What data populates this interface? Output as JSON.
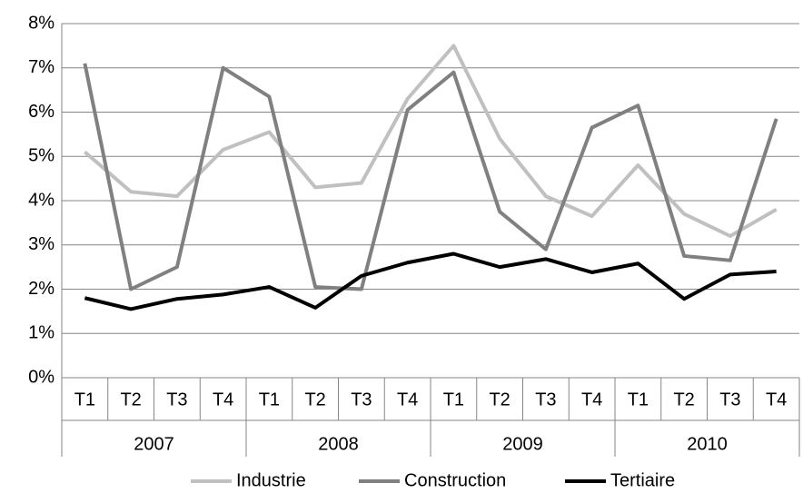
{
  "chart_data": {
    "type": "line",
    "categories": [
      "T1",
      "T2",
      "T3",
      "T4",
      "T1",
      "T2",
      "T3",
      "T4",
      "T1",
      "T2",
      "T3",
      "T4",
      "T1",
      "T2",
      "T3",
      "T4"
    ],
    "category_groups": [
      "2007",
      "2008",
      "2009",
      "2010"
    ],
    "series": [
      {
        "name": "Industrie",
        "color": "#c0c0c0",
        "values": [
          5.1,
          4.2,
          4.1,
          5.15,
          5.55,
          4.3,
          4.4,
          6.3,
          7.5,
          5.4,
          4.1,
          3.65,
          4.8,
          3.7,
          3.2,
          3.8
        ]
      },
      {
        "name": "Construction",
        "color": "#808080",
        "values": [
          7.1,
          2.0,
          2.5,
          7.0,
          6.35,
          2.05,
          2.0,
          6.05,
          6.9,
          3.75,
          2.9,
          5.65,
          6.15,
          2.75,
          2.65,
          5.85
        ]
      },
      {
        "name": "Tertiaire",
        "color": "#000000",
        "values": [
          1.8,
          1.55,
          1.78,
          1.88,
          2.05,
          1.58,
          2.3,
          2.6,
          2.8,
          2.5,
          2.68,
          2.38,
          2.58,
          1.78,
          2.33,
          2.4
        ]
      }
    ],
    "ylim": [
      0,
      8
    ],
    "yticks": [
      {
        "value": 0,
        "label": "0%"
      },
      {
        "value": 1,
        "label": "1%"
      },
      {
        "value": 2,
        "label": "2%"
      },
      {
        "value": 3,
        "label": "3%"
      },
      {
        "value": 4,
        "label": "4%"
      },
      {
        "value": 5,
        "label": "5%"
      },
      {
        "value": 6,
        "label": "6%"
      },
      {
        "value": 7,
        "label": "7%"
      },
      {
        "value": 8,
        "label": "8%"
      }
    ],
    "grid": true,
    "legend": "bottom"
  }
}
